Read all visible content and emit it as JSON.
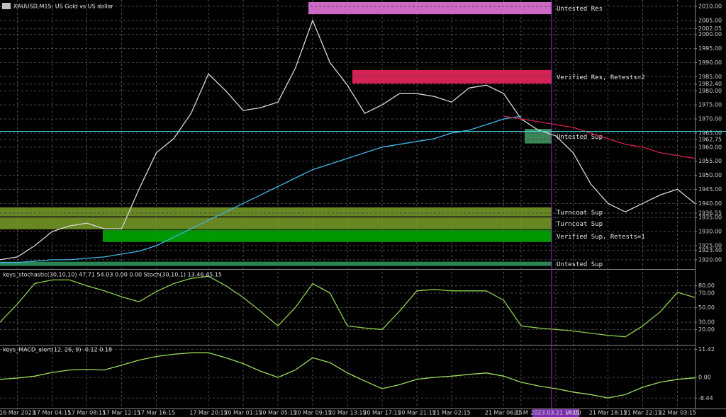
{
  "chart_data": [
    {
      "type": "line",
      "title": "XAUUSD,M15:  US Gold vs US dollar",
      "categories": [
        null,
        "16 Mar 2023",
        null,
        "17 Mar 04:15",
        null,
        "17 Mar 08:15",
        null,
        "17 Mar 12:15",
        null,
        "17 Mar 16:15",
        null,
        null,
        "17 Mar 20:15",
        null,
        "20 Mar 01:15",
        null,
        "20 Mar 05:15",
        null,
        "20 Mar 09:15",
        null,
        "20 Mar 13:15",
        null,
        "20 Mar 17:15",
        null,
        "20 Mar 21:15",
        null,
        "21 Mar 02:15",
        null,
        null,
        "21 Mar 06:15",
        "21 M",
        null,
        "2023.03.21 14:00",
        "4:15",
        null,
        "21 Mar 18:15",
        null,
        "21 Mar 22:15",
        null,
        "22 Mar 03:15",
        null
      ],
      "series": [
        {
          "color": "#d8d8d8",
          "values": [
            1920,
            1921,
            1925,
            1930,
            1932,
            1933,
            1931,
            1931,
            1945,
            1958,
            1963,
            1972,
            1986,
            1980,
            1973,
            1974,
            1976,
            1988,
            2005,
            1990,
            1982,
            1972,
            1975,
            1979,
            1979,
            1978,
            1976,
            1981,
            1982,
            1979,
            1970,
            1966,
            1964,
            1958,
            1947,
            1940,
            1937,
            1940,
            1943,
            1945,
            1940
          ]
        },
        {
          "color": "#3fb6e8",
          "values": [
            1919,
            1919,
            1919.5,
            1920,
            1920,
            1920.5,
            1921,
            1922,
            1923,
            1925,
            1928,
            1931,
            1934,
            1937,
            1940,
            1943,
            1946,
            1949,
            1952,
            1954,
            1956,
            1958,
            1960,
            1961,
            1962,
            1963,
            1965,
            1966,
            1968,
            1970,
            1971,
            null,
            null,
            null,
            null,
            null,
            null,
            null,
            null,
            null,
            null
          ]
        },
        {
          "color": "#d0204a",
          "values": [
            null,
            null,
            null,
            null,
            null,
            null,
            null,
            null,
            null,
            null,
            null,
            null,
            null,
            null,
            null,
            null,
            null,
            null,
            null,
            null,
            null,
            null,
            null,
            null,
            null,
            null,
            null,
            null,
            null,
            1971,
            1970,
            1969,
            1968,
            1967,
            1965,
            1963,
            1961,
            1960,
            1958,
            1957,
            1956
          ]
        }
      ],
      "zones": [
        {
          "label": "Untested Res",
          "high": 2012,
          "low": 2007.2,
          "color": "#d86fd0"
        },
        {
          "label": "Verified Res, Retests=2",
          "high": 1987.4,
          "low": 1982.6,
          "color": "#e0245a"
        },
        {
          "label": "Untested Sup",
          "high": 1966.5,
          "low": 1961.3,
          "color": "#3c8c5a"
        },
        {
          "label": "Turncoat Sup",
          "high": 1938.6,
          "low": 1935.4,
          "color": "#6b8e23"
        },
        {
          "label": "Turncoat Sup",
          "high": 1935.1,
          "low": 1930.8,
          "color": "#6b8e23"
        },
        {
          "label": "Verified Sup, Retests=1",
          "high": 1930.6,
          "low": 1926.3,
          "color": "#00a000"
        },
        {
          "label": "Untested Sup",
          "high": 1919.3,
          "low": 1917.8,
          "color": "#2e8b57"
        }
      ],
      "ylim": [
        1917.2,
        2011.5
      ],
      "yticks": [
        {
          "value": 2010,
          "label": "2010.00"
        },
        {
          "value": 2005,
          "label": "2005.00"
        },
        {
          "value": 2002.05,
          "label": "2002.05"
        },
        {
          "value": 2000,
          "label": "2000.00"
        },
        {
          "value": 1995,
          "label": "1995.00"
        },
        {
          "value": 1990,
          "label": "1990.00"
        },
        {
          "value": 1985,
          "label": "1985.00"
        },
        {
          "value": 1982.4,
          "label": "1982.40"
        },
        {
          "value": 1980,
          "label": "1980.00"
        },
        {
          "value": 1975,
          "label": "1975.00"
        },
        {
          "value": 1970,
          "label": "1970.00"
        },
        {
          "value": 1965,
          "label": "1965.00"
        },
        {
          "value": 1962.75,
          "label": "1962.75"
        },
        {
          "value": 1960,
          "label": "1960.00"
        },
        {
          "value": 1955,
          "label": "1955.00"
        },
        {
          "value": 1950,
          "label": "1950.00"
        },
        {
          "value": 1945,
          "label": "1945.00"
        },
        {
          "value": 1940,
          "label": "1940.00"
        },
        {
          "value": 1936.55,
          "label": "1936.55"
        },
        {
          "value": 1935,
          "label": "1935.00"
        },
        {
          "value": 1930,
          "label": "1930.00"
        },
        {
          "value": 1925,
          "label": "1925.00"
        },
        {
          "value": 1923.4,
          "label": "1923.40"
        },
        {
          "value": 1920,
          "label": "1920.00"
        }
      ],
      "grid": true
    },
    {
      "type": "line",
      "title": "keys_stochastic(30,10,10) 47.71 54.03 0.00 0.00 Stoch(30,10,1) 13.46 45.15",
      "series": [
        {
          "color": "#8ccf4a",
          "values": [
            30,
            55,
            83,
            88,
            88,
            80,
            73,
            65,
            58,
            72,
            83,
            90,
            93,
            80,
            64,
            45,
            25,
            50,
            83,
            70,
            25,
            22,
            20,
            45,
            73,
            75,
            73,
            73,
            73,
            60,
            25,
            22,
            20,
            18,
            15,
            12,
            10,
            25,
            44,
            71,
            64
          ]
        }
      ],
      "ylim": [
        0,
        100
      ],
      "yticks": [
        {
          "value": 80,
          "label": "80.00"
        },
        {
          "value": 70,
          "label": "70.00"
        },
        {
          "value": 50,
          "label": "50.00"
        },
        {
          "value": 30,
          "label": "30.00"
        },
        {
          "value": 20,
          "label": "20.00"
        }
      ],
      "grid": true
    },
    {
      "type": "line",
      "title": "keys_MACD_alert(12, 26, 9) -0.12 0.18",
      "series": [
        {
          "color": "#9adf5a",
          "values": [
            -0.8,
            -0.3,
            0.5,
            2,
            3,
            3.2,
            3,
            5,
            7,
            8.5,
            9.4,
            10,
            10,
            8,
            5.6,
            2.5,
            0,
            3,
            8,
            6,
            1.8,
            -1.5,
            -4.6,
            -3,
            -0.8,
            0,
            0.5,
            1.2,
            1.8,
            0.5,
            -2,
            -3.5,
            -4.6,
            -6,
            -7,
            -8.4,
            -7,
            -4,
            -2,
            -0.8,
            -0.2
          ]
        }
      ],
      "ylim": [
        -12.4,
        12.4
      ],
      "yticks": [
        {
          "value": 11.42,
          "label": "11.42"
        },
        {
          "value": 0,
          "label": "0.00"
        },
        {
          "value": -8.44,
          "label": "-8.44"
        }
      ],
      "grid": true
    }
  ]
}
